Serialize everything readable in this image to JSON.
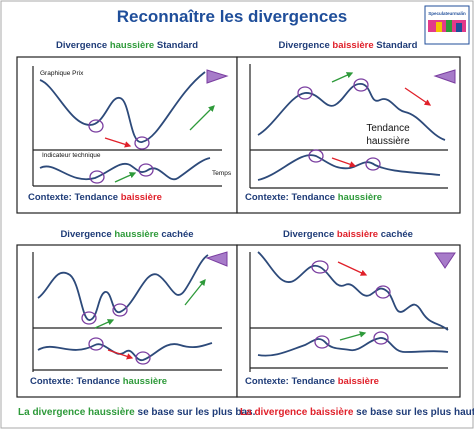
{
  "header": {
    "title": "Reconnaître les divergences",
    "logo": "Speculateurmalin"
  },
  "panels": [
    {
      "title": [
        "Divergence ",
        "haussière",
        " Standard"
      ],
      "labels": [
        "Graphique Prix",
        "Indicateur technique",
        "Temps"
      ],
      "context": [
        "Contexte: Tendance ",
        "baissière"
      ]
    },
    {
      "title": [
        "Divergence ",
        "baissière",
        " Standard"
      ],
      "labels": [
        "Tendance",
        "haussière"
      ],
      "context": [
        "Contexte: Tendance ",
        "haussière"
      ]
    },
    {
      "title": [
        "Divergence ",
        "haussière",
        " cachée"
      ],
      "context": [
        "Contexte: Tendance ",
        "haussière"
      ]
    },
    {
      "title": [
        "Divergence ",
        "baissière",
        " cachée"
      ],
      "context": [
        "Contexte: Tendance ",
        "baissière"
      ]
    }
  ],
  "footer": [
    [
      "La divergence ",
      "haussière",
      " se base sur les plus bas."
    ],
    [
      "La divergence ",
      "baissière",
      " se base sur les plus hauts."
    ]
  ]
}
